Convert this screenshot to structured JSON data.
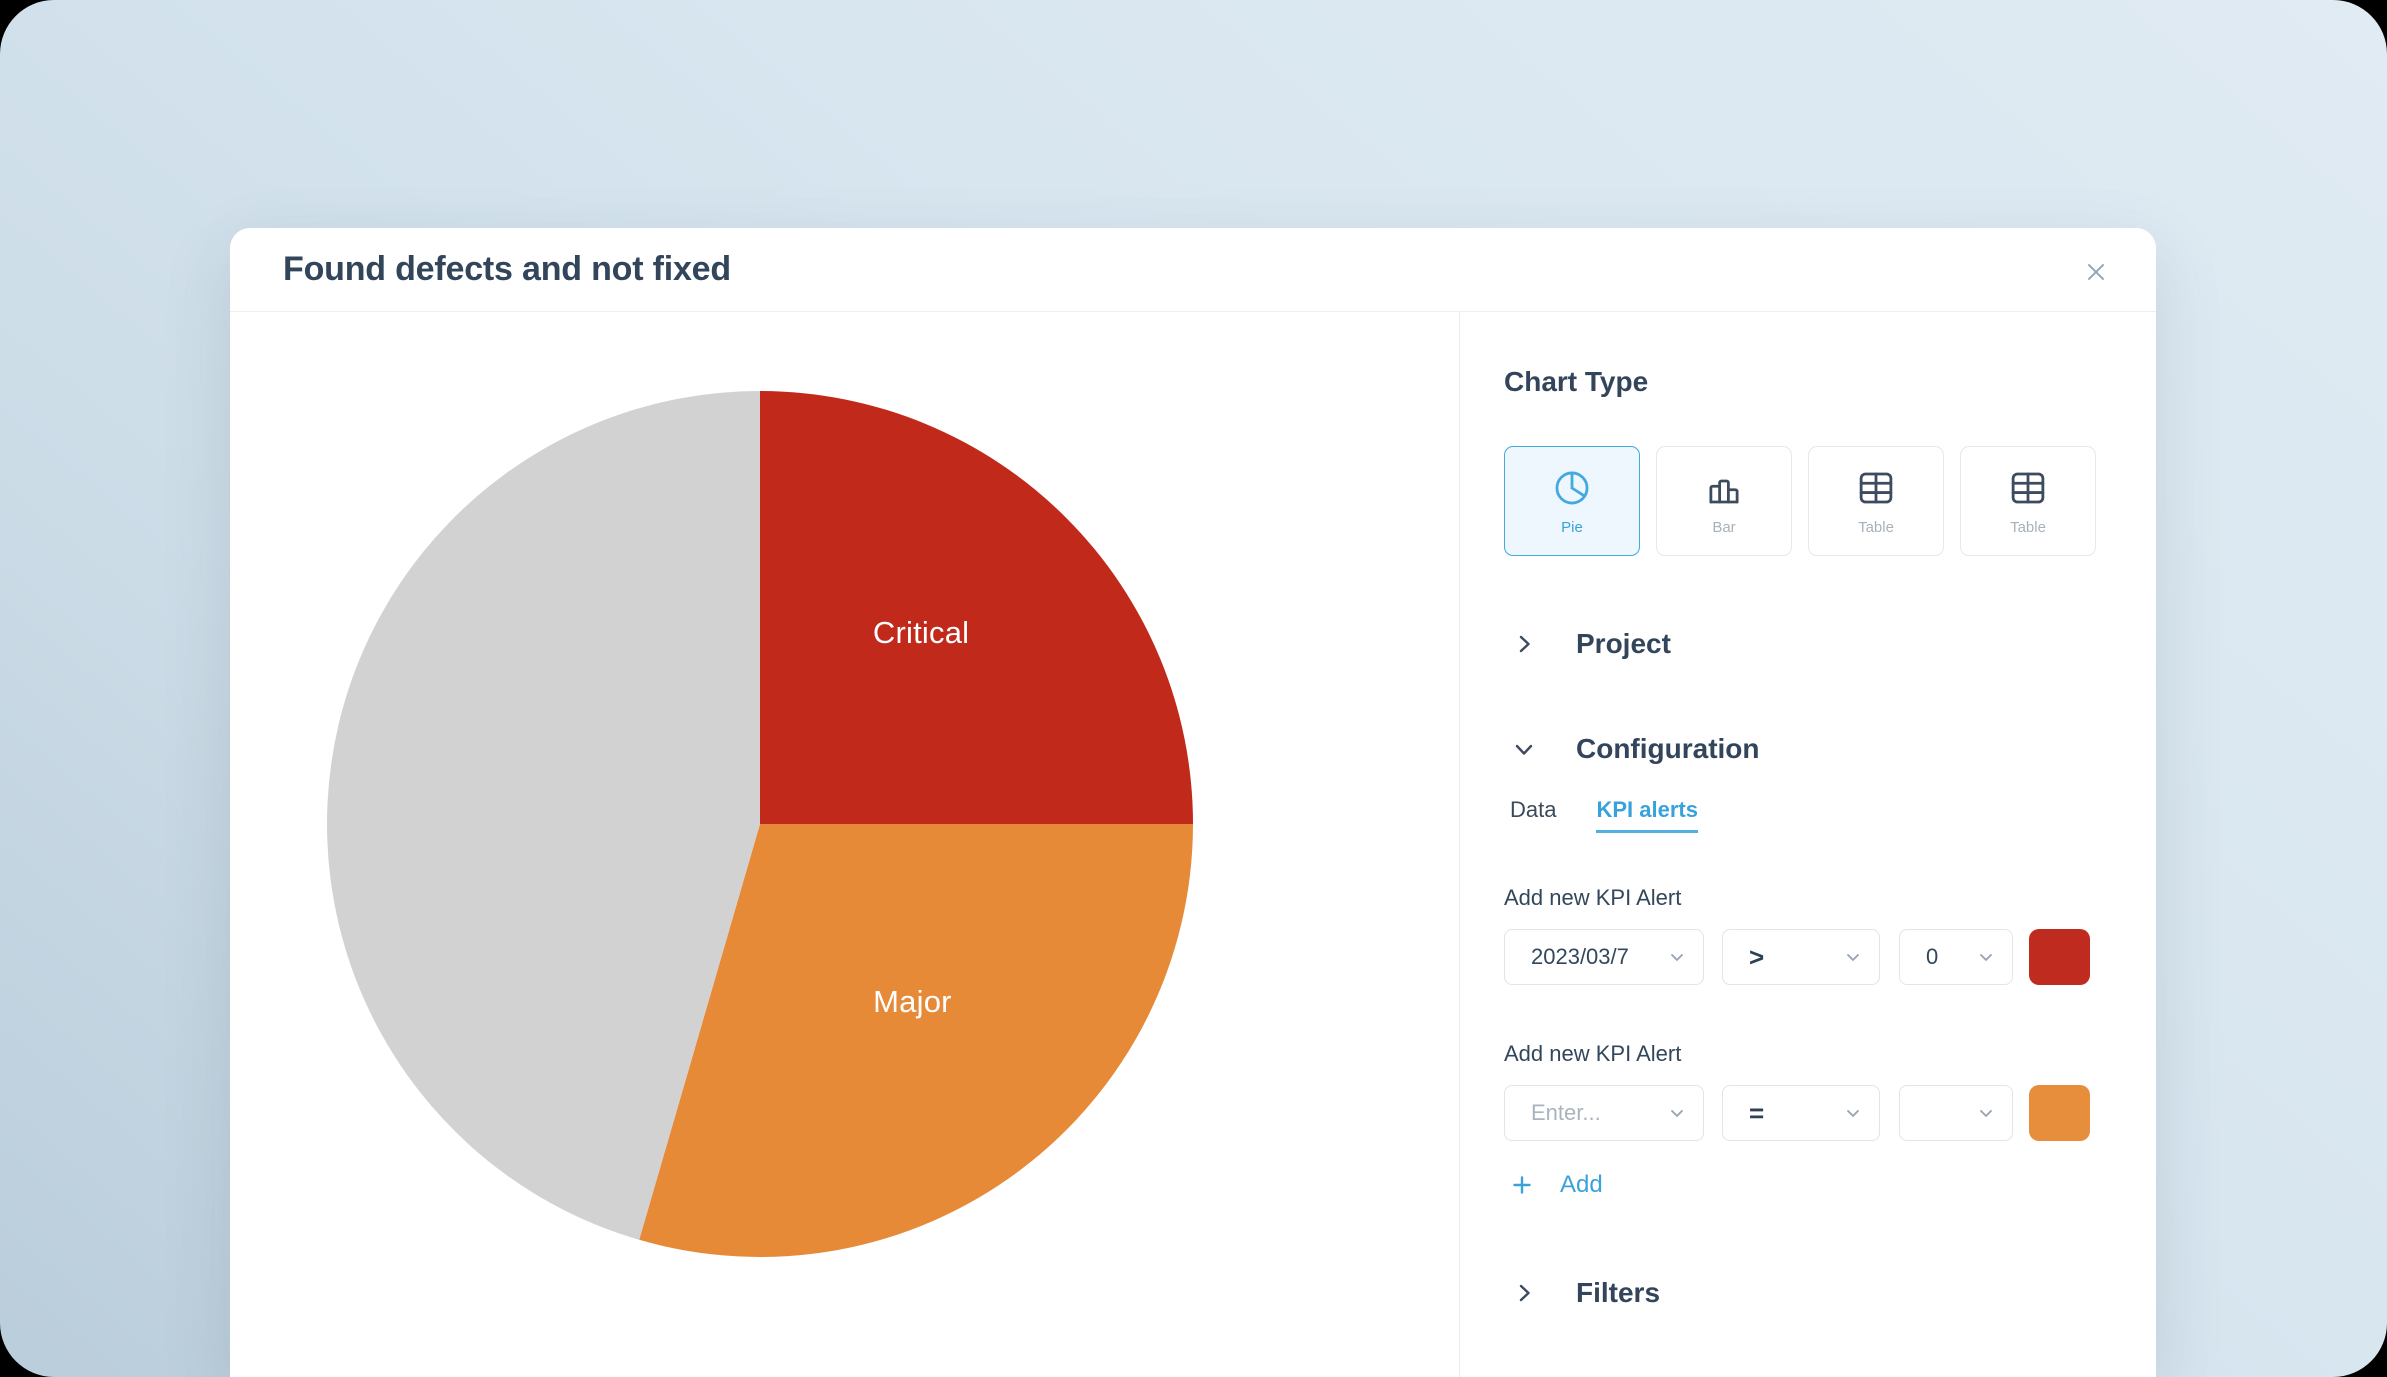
{
  "modal": {
    "title": "Found defects and not fixed"
  },
  "chart_data": {
    "type": "pie",
    "title": "Found defects and not fixed",
    "legend": "none",
    "labels_on_slices": true,
    "slices": [
      {
        "label": "Critical",
        "percent": 25,
        "color": "#c1291b"
      },
      {
        "label": "Major",
        "percent": 29.5,
        "color": "#e78a38"
      },
      {
        "label": "",
        "percent": 45.5,
        "color": "#d2d2d2"
      }
    ]
  },
  "panel": {
    "chart_type": {
      "heading": "Chart Type",
      "options": [
        {
          "label": "Pie",
          "icon": "pie-chart-icon",
          "selected": true
        },
        {
          "label": "Bar",
          "icon": "bar-chart-icon",
          "selected": false
        },
        {
          "label": "Table",
          "icon": "table-icon",
          "selected": false
        },
        {
          "label": "Table",
          "icon": "table-icon",
          "selected": false
        }
      ]
    },
    "sections": {
      "project": "Project",
      "configuration": "Configuration",
      "filters": "Filters"
    },
    "tabs": [
      {
        "label": "Data",
        "active": false
      },
      {
        "label": "KPI alerts",
        "active": true
      }
    ],
    "kpi": {
      "alerts": [
        {
          "heading": "Add new KPI Alert",
          "metric": "2023/03/7",
          "metric_placeholder": "",
          "operator": ">",
          "value": "0",
          "color": "#bf2b1e"
        },
        {
          "heading": "Add new KPI Alert",
          "metric": "",
          "metric_placeholder": "Enter...",
          "operator": "=",
          "value": "",
          "color": "#e78e3c"
        }
      ],
      "add_label": "Add"
    }
  },
  "colors": {
    "accent_blue": "#3aa2db",
    "heading_text": "#32455a",
    "critical_red": "#c1291b",
    "major_orange": "#e78a38",
    "remainder_gray": "#d2d2d2"
  }
}
